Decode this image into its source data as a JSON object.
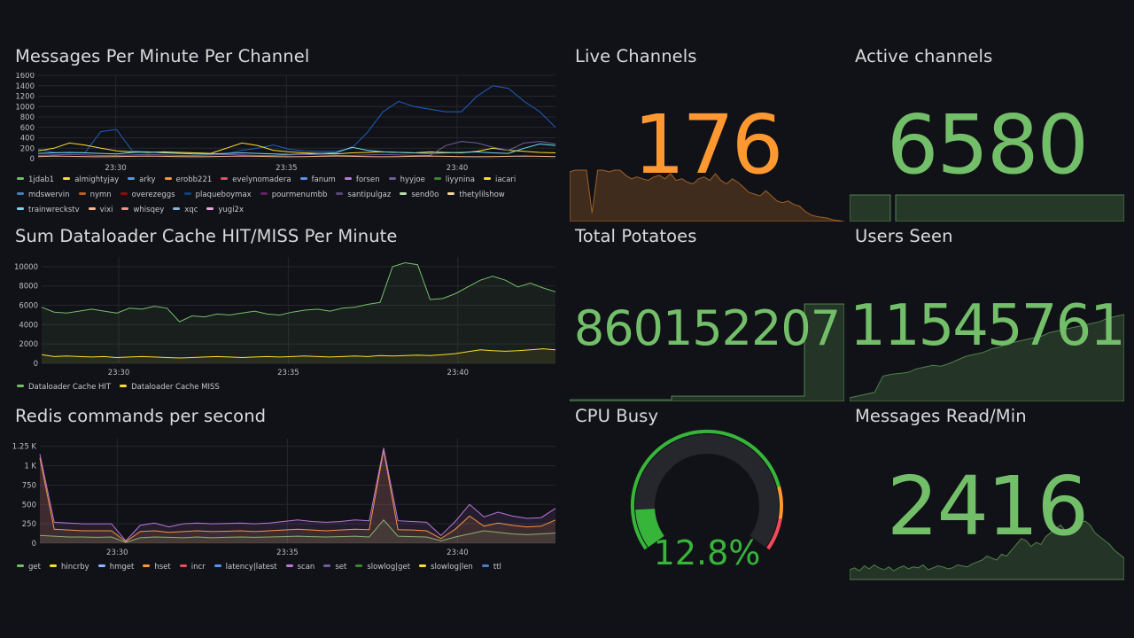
{
  "panels": {
    "messages": {
      "title": "Messages Per Minute Per Channel",
      "legend": [
        {
          "name": "1jdab1",
          "color": "#73bf69"
        },
        {
          "name": "almightyjay",
          "color": "#fade2a"
        },
        {
          "name": "arky",
          "color": "#5794f2"
        },
        {
          "name": "erobb221",
          "color": "#ff9830"
        },
        {
          "name": "evelynomadera",
          "color": "#f2495c"
        },
        {
          "name": "fanum",
          "color": "#5794f2"
        },
        {
          "name": "forsen",
          "color": "#b877d9"
        },
        {
          "name": "hyyjoe",
          "color": "#705da0"
        },
        {
          "name": "liyynina",
          "color": "#37872d"
        },
        {
          "name": "iacari",
          "color": "#fade2a"
        },
        {
          "name": "mdswervin",
          "color": "#447ebc"
        },
        {
          "name": "nymn",
          "color": "#c15c17"
        },
        {
          "name": "overezeggs",
          "color": "#890f02"
        },
        {
          "name": "plaqueboymax",
          "color": "#0a437c"
        },
        {
          "name": "pourmenumbb",
          "color": "#6d1f62"
        },
        {
          "name": "santipulgaz",
          "color": "#584477"
        },
        {
          "name": "send0o",
          "color": "#b7dbab"
        },
        {
          "name": "thetylilshow",
          "color": "#f4d598"
        },
        {
          "name": "trainwreckstv",
          "color": "#70dbed"
        },
        {
          "name": "vixi",
          "color": "#f9ba8f"
        },
        {
          "name": "whisqey",
          "color": "#f29191"
        },
        {
          "name": "xqc",
          "color": "#82b5d8"
        },
        {
          "name": "yugi2x",
          "color": "#e5a8e2"
        }
      ]
    },
    "cache": {
      "title": "Sum Dataloader Cache HIT/MISS Per Minute",
      "legend": [
        {
          "name": "Dataloader Cache HIT",
          "color": "#73bf69"
        },
        {
          "name": "Dataloader Cache MISS",
          "color": "#fade2a"
        }
      ]
    },
    "redis": {
      "title": "Redis commands per second",
      "legend": [
        {
          "name": "get",
          "color": "#73bf69"
        },
        {
          "name": "hincrby",
          "color": "#fade2a"
        },
        {
          "name": "hmget",
          "color": "#8ab8ff"
        },
        {
          "name": "hset",
          "color": "#ff9830"
        },
        {
          "name": "incr",
          "color": "#f2495c"
        },
        {
          "name": "latency|latest",
          "color": "#5794f2"
        },
        {
          "name": "scan",
          "color": "#b877d9"
        },
        {
          "name": "set",
          "color": "#705da0"
        },
        {
          "name": "slowlog|get",
          "color": "#37872d"
        },
        {
          "name": "slowlog|len",
          "color": "#fade2a"
        },
        {
          "name": "ttl",
          "color": "#447ebc"
        }
      ]
    },
    "live_channels": {
      "title": "Live Channels",
      "value": "176",
      "color": "#ff9830"
    },
    "active_channels": {
      "title": "Active channels",
      "value": "6580",
      "color": "#73bf69"
    },
    "total_potatoes": {
      "title": "Total Potatoes",
      "value": "860152207",
      "color": "#73bf69"
    },
    "users_seen": {
      "title": "Users Seen",
      "value": "11545761",
      "color": "#73bf69"
    },
    "cpu_busy": {
      "title": "CPU Busy",
      "value": "12.8%",
      "percent": 12.8,
      "color": "#37b53a"
    },
    "messages_read": {
      "title": "Messages Read/Min",
      "value": "2416",
      "color": "#73bf69"
    }
  },
  "chart_data": [
    {
      "type": "line",
      "title": "Messages Per Minute Per Channel",
      "ylim": [
        0,
        1600
      ],
      "yticks": [
        "0",
        "200",
        "400",
        "600",
        "800",
        "1000",
        "1200",
        "1400",
        "1600"
      ],
      "xticks": [
        "23:30",
        "23:35",
        "23:40"
      ],
      "series": [
        {
          "name": "plaqueboymax",
          "color": "#1f60c4",
          "values": [
            180,
            120,
            110,
            120,
            520,
            560,
            150,
            130,
            120,
            110,
            110,
            100,
            90,
            160,
            200,
            260,
            180,
            150,
            140,
            140,
            200,
            500,
            900,
            1100,
            1000,
            950,
            900,
            900,
            1200,
            1400,
            1350,
            1100,
            900,
            600
          ]
        },
        {
          "name": "almightyjay",
          "color": "#fade2a",
          "values": [
            150,
            200,
            300,
            260,
            200,
            150,
            130,
            120,
            130,
            120,
            110,
            100,
            200,
            300,
            250,
            160,
            130,
            110,
            100,
            90,
            110,
            120,
            130,
            120,
            110,
            130,
            120,
            110,
            140,
            200,
            160,
            140,
            120,
            110
          ]
        },
        {
          "name": "trainwreckstv",
          "color": "#70dbed",
          "values": [
            100,
            110,
            120,
            110,
            100,
            90,
            120,
            130,
            110,
            100,
            90,
            90,
            100,
            110,
            100,
            90,
            80,
            90,
            100,
            110,
            220,
            160,
            130,
            120,
            110,
            100,
            110,
            120,
            130,
            110,
            100,
            200,
            280,
            250
          ]
        },
        {
          "name": "hyyjoe",
          "color": "#705da0",
          "values": [
            60,
            70,
            80,
            70,
            60,
            60,
            70,
            80,
            70,
            60,
            60,
            70,
            80,
            70,
            60,
            60,
            70,
            80,
            70,
            60,
            60,
            70,
            80,
            70,
            60,
            60,
            250,
            330,
            300,
            220,
            160,
            300,
            330,
            280
          ]
        },
        {
          "name": "vixi",
          "color": "#f9ba8f",
          "values": [
            40,
            50,
            45,
            40,
            35,
            40,
            45,
            50,
            45,
            40,
            35,
            40,
            45,
            50,
            45,
            40,
            35,
            40,
            45,
            50,
            45,
            40,
            35,
            40,
            45,
            50,
            45,
            40,
            35,
            40,
            45,
            50,
            45,
            40
          ]
        }
      ]
    },
    {
      "type": "area",
      "title": "Sum Dataloader Cache HIT/MISS Per Minute",
      "ylim": [
        0,
        11000
      ],
      "yticks": [
        "0",
        "2000",
        "4000",
        "6000",
        "8000",
        "10000"
      ],
      "xticks": [
        "23:30",
        "23:35",
        "23:40"
      ],
      "series": [
        {
          "name": "Dataloader Cache HIT",
          "color": "#73bf69",
          "values": [
            5800,
            5300,
            5200,
            5400,
            5600,
            5400,
            5200,
            5700,
            5600,
            5900,
            5700,
            4300,
            4900,
            4800,
            5100,
            5000,
            5200,
            5400,
            5100,
            5000,
            5300,
            5500,
            5600,
            5400,
            5700,
            5800,
            6100,
            6300,
            10000,
            10400,
            10200,
            6600,
            6700,
            7200,
            7900,
            8600,
            9000,
            8600,
            7900,
            8300,
            7800,
            7400
          ]
        },
        {
          "name": "Dataloader Cache MISS",
          "color": "#fade2a",
          "values": [
            900,
            700,
            750,
            700,
            650,
            700,
            600,
            650,
            700,
            650,
            600,
            550,
            600,
            650,
            700,
            650,
            600,
            650,
            700,
            650,
            700,
            750,
            700,
            650,
            700,
            750,
            700,
            800,
            750,
            800,
            850,
            800,
            900,
            1000,
            1200,
            1400,
            1300,
            1250,
            1300,
            1400,
            1500,
            1400
          ]
        }
      ]
    },
    {
      "type": "area",
      "title": "Redis commands per second",
      "ylim": [
        0,
        1350
      ],
      "yticks": [
        "0",
        "250",
        "500",
        "750",
        "1 K",
        "1.25 K"
      ],
      "xticks": [
        "23:30",
        "23:35",
        "23:40"
      ],
      "series": [
        {
          "name": "get",
          "color": "#73bf69",
          "values": [
            100,
            90,
            80,
            80,
            75,
            80,
            10,
            70,
            80,
            75,
            70,
            80,
            70,
            75,
            80,
            75,
            80,
            85,
            90,
            85,
            80,
            85,
            90,
            80,
            300,
            90,
            85,
            80,
            30,
            80,
            120,
            160,
            140,
            120,
            110,
            120,
            130
          ]
        },
        {
          "name": "hset",
          "color": "#ff9830",
          "values": [
            1100,
            180,
            170,
            160,
            160,
            160,
            20,
            150,
            160,
            140,
            150,
            160,
            150,
            155,
            160,
            150,
            160,
            170,
            180,
            170,
            160,
            170,
            180,
            175,
            1200,
            175,
            170,
            160,
            60,
            180,
            350,
            220,
            260,
            230,
            210,
            220,
            300
          ]
        },
        {
          "name": "scan",
          "color": "#b877d9",
          "values": [
            1150,
            270,
            260,
            250,
            250,
            250,
            30,
            230,
            260,
            210,
            250,
            260,
            250,
            255,
            260,
            250,
            260,
            280,
            300,
            280,
            270,
            280,
            300,
            290,
            1230,
            290,
            280,
            270,
            100,
            280,
            500,
            340,
            400,
            350,
            320,
            330,
            450
          ]
        }
      ]
    }
  ]
}
